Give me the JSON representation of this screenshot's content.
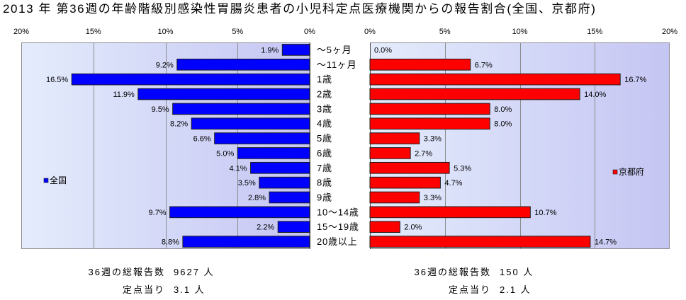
{
  "chart_data": {
    "type": "bar",
    "orientation": "horizontal",
    "layout": "back-to-back",
    "title": "2013 年 第36週の年齢階級別感染性胃腸炎患者の小児科定点医療機関からの報告割合(全国、京都府)",
    "categories": [
      "～5ヶ月",
      "～11ヶ月",
      "1歳",
      "2歳",
      "3歳",
      "4歳",
      "5歳",
      "6歳",
      "7歳",
      "8歳",
      "9歳",
      "10～14歳",
      "15～19歳",
      "20歳以上"
    ],
    "grid": true,
    "plot_background": [
      "#e4ecfc",
      "#c5c5f3"
    ],
    "panels": [
      {
        "x_reversed": true,
        "xlim": [
          0,
          20
        ],
        "ticks": [
          0,
          5,
          10,
          15,
          20
        ],
        "tick_labels": [
          "0%",
          "5%",
          "10%",
          "15%",
          "20%"
        ],
        "legend": "left-middle",
        "series": [
          {
            "name": "全国",
            "color": "#0000ff",
            "values": [
              1.9,
              9.2,
              16.5,
              11.9,
              9.5,
              8.2,
              6.6,
              5.0,
              4.1,
              3.5,
              2.8,
              9.7,
              2.2,
              8.8
            ],
            "value_labels": [
              "1.9%",
              "9.2%",
              "16.5%",
              "11.9%",
              "9.5%",
              "8.2%",
              "6.6%",
              "5.0%",
              "4.1%",
              "3.5%",
              "2.8%",
              "9.7%",
              "2.2%",
              "8.8%"
            ]
          }
        ],
        "summary": {
          "total_label": "36週の総報告数",
          "total_value": "9627 人",
          "per_site_label": "定点当り",
          "per_site_value": "3.1 人"
        }
      },
      {
        "x_reversed": false,
        "xlim": [
          0,
          20
        ],
        "ticks": [
          0,
          5,
          10,
          15,
          20
        ],
        "tick_labels": [
          "0%",
          "5%",
          "10%",
          "15%",
          "20%"
        ],
        "legend": "right-middle",
        "series": [
          {
            "name": "京都府",
            "color": "#ff0000",
            "values": [
              0.0,
              6.7,
              16.7,
              14.0,
              8.0,
              8.0,
              3.3,
              2.7,
              5.3,
              4.7,
              3.3,
              10.7,
              2.0,
              14.7
            ],
            "value_labels": [
              "0.0%",
              "6.7%",
              "16.7%",
              "14.0%",
              "8.0%",
              "8.0%",
              "3.3%",
              "2.7%",
              "5.3%",
              "4.7%",
              "3.3%",
              "10.7%",
              "2.0%",
              "14.7%"
            ]
          }
        ],
        "summary": {
          "total_label": "36週の総報告数",
          "total_value": "150 人",
          "per_site_label": "定点当り",
          "per_site_value": "2.1 人"
        }
      }
    ]
  }
}
